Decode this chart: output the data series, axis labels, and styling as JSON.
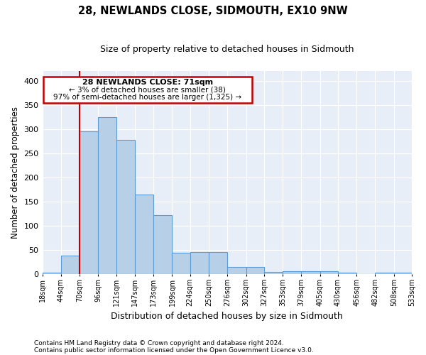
{
  "title": "28, NEWLANDS CLOSE, SIDMOUTH, EX10 9NW",
  "subtitle": "Size of property relative to detached houses in Sidmouth",
  "xlabel": "Distribution of detached houses by size in Sidmouth",
  "ylabel": "Number of detached properties",
  "bar_values": [
    4,
    38,
    295,
    325,
    278,
    165,
    122,
    45,
    46,
    46,
    15,
    15,
    5,
    6,
    6,
    6,
    3,
    1,
    3,
    3
  ],
  "bin_edges": [
    18,
    44,
    70,
    96,
    121,
    147,
    173,
    199,
    224,
    250,
    276,
    302,
    327,
    353,
    379,
    405,
    430,
    456,
    482,
    508,
    533
  ],
  "tick_labels": [
    "18sqm",
    "44sqm",
    "70sqm",
    "96sqm",
    "121sqm",
    "147sqm",
    "173sqm",
    "199sqm",
    "224sqm",
    "250sqm",
    "276sqm",
    "302sqm",
    "327sqm",
    "353sqm",
    "379sqm",
    "405sqm",
    "430sqm",
    "456sqm",
    "482sqm",
    "508sqm",
    "533sqm"
  ],
  "bar_color": "#b8cfe8",
  "bar_edge_color": "#5b9bd5",
  "annotation_title": "28 NEWLANDS CLOSE: 71sqm",
  "annotation_line1": "← 3% of detached houses are smaller (38)",
  "annotation_line2": "97% of semi-detached houses are larger (1,325) →",
  "vline_color": "#c00000",
  "annotation_box_color": "#c00000",
  "bg_color": "#e8eef7",
  "footer1": "Contains HM Land Registry data © Crown copyright and database right 2024.",
  "footer2": "Contains public sector information licensed under the Open Government Licence v3.0.",
  "ylim": [
    0,
    420
  ],
  "yticks": [
    0,
    50,
    100,
    150,
    200,
    250,
    300,
    350,
    400
  ]
}
